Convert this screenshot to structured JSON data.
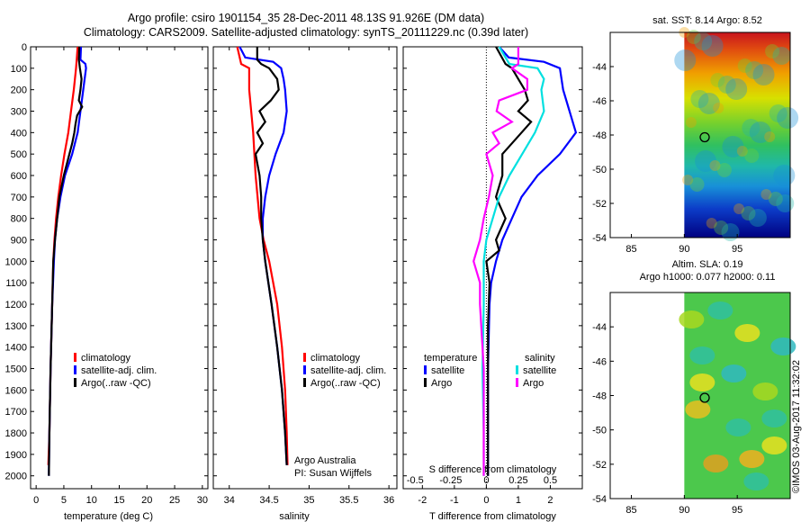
{
  "header": {
    "title_line1": "Argo profile: csiro 1901154_35 28-Dec-2011 48.13S 91.926E (DM data)",
    "title_line2": "Climatology: CARS2009. Satellite-adjusted climatology: synTS_20111229.nc (0.39d later)"
  },
  "colors": {
    "climatology": "#ff0000",
    "satellite": "#0000ff",
    "argo": "#000000",
    "argo_s": "#ff00ff",
    "sat_s": "#00e0e0"
  },
  "depth_ticks": [
    "0",
    "100",
    "200",
    "300",
    "400",
    "500",
    "600",
    "700",
    "800",
    "900",
    "1000",
    "1100",
    "1200",
    "1300",
    "1400",
    "1500",
    "1600",
    "1700",
    "1800",
    "1900",
    "2000"
  ],
  "chart_data": [
    {
      "type": "line",
      "panel": "temperature",
      "xlabel": "temperature (deg C)",
      "ylabel": "depth",
      "xlim": [
        -1,
        31
      ],
      "ylim": [
        0,
        2060
      ],
      "xticks": [
        "0",
        "5",
        "10",
        "15",
        "20",
        "25",
        "30"
      ],
      "xtick_values": [
        0,
        5,
        10,
        15,
        20,
        25,
        30
      ],
      "legend": {
        "climatology": "climatology",
        "satellite": "satellite-adj. clim.",
        "argo": "Argo(..raw -QC)"
      },
      "series": [
        {
          "name": "climatology",
          "depth": [
            0,
            100,
            200,
            300,
            400,
            500,
            600,
            700,
            800,
            900,
            1000,
            1200,
            1500,
            1800,
            1950
          ],
          "values": [
            7.5,
            7.2,
            6.8,
            6.3,
            5.8,
            5.1,
            4.5,
            4.0,
            3.6,
            3.3,
            3.1,
            2.9,
            2.6,
            2.4,
            2.2
          ]
        },
        {
          "name": "satellite-adj. clim.",
          "depth": [
            0,
            60,
            80,
            100,
            200,
            300,
            400,
            500,
            600,
            700,
            800,
            900,
            1000,
            1200,
            1500,
            1800,
            2000
          ],
          "values": [
            8.1,
            8.0,
            8.9,
            9.0,
            8.5,
            8.0,
            7.5,
            6.5,
            5.2,
            4.4,
            3.8,
            3.4,
            3.2,
            2.9,
            2.6,
            2.4,
            2.3
          ]
        },
        {
          "name": "Argo(..raw -QC)",
          "depth": [
            0,
            60,
            100,
            150,
            200,
            250,
            280,
            320,
            360,
            400,
            450,
            500,
            600,
            700,
            800,
            900,
            1000,
            1200,
            1500,
            1800,
            2000
          ],
          "values": [
            7.8,
            7.7,
            7.9,
            8.2,
            8.0,
            7.7,
            8.3,
            7.4,
            7.1,
            6.9,
            6.5,
            6.0,
            5.0,
            4.2,
            3.8,
            3.4,
            3.1,
            2.9,
            2.6,
            2.4,
            2.3
          ]
        }
      ]
    },
    {
      "type": "line",
      "panel": "salinity",
      "xlabel": "salinity",
      "ylabel": "depth",
      "xlim": [
        33.8,
        36.1
      ],
      "ylim": [
        0,
        2060
      ],
      "xticks": [
        "34",
        "34.5",
        "35",
        "35.5",
        "36"
      ],
      "xtick_values": [
        34,
        34.5,
        35,
        35.5,
        36
      ],
      "legend": {
        "climatology": "climatology",
        "satellite": "satellite-adj. clim.",
        "argo": "Argo(..raw -QC)"
      },
      "series": [
        {
          "name": "climatology",
          "depth": [
            0,
            80,
            100,
            200,
            400,
            600,
            800,
            900,
            1000,
            1200,
            1400,
            1600,
            1800,
            1950
          ],
          "values": [
            34.1,
            34.15,
            34.25,
            34.25,
            34.3,
            34.33,
            34.38,
            34.43,
            34.5,
            34.6,
            34.66,
            34.7,
            34.72,
            34.73
          ]
        },
        {
          "name": "satellite-adj. clim.",
          "depth": [
            0,
            50,
            70,
            100,
            150,
            200,
            300,
            400,
            500,
            600,
            700,
            800,
            900,
            1000,
            1200,
            1400,
            1600,
            1800,
            1950
          ],
          "values": [
            34.13,
            34.2,
            34.55,
            34.65,
            34.68,
            34.7,
            34.72,
            34.68,
            34.58,
            34.5,
            34.45,
            34.42,
            34.42,
            34.45,
            34.53,
            34.6,
            34.66,
            34.7,
            34.72
          ]
        },
        {
          "name": "Argo(..raw -QC)",
          "depth": [
            0,
            60,
            80,
            100,
            150,
            200,
            250,
            300,
            350,
            400,
            450,
            500,
            600,
            700,
            800,
            900,
            1000,
            1200,
            1400,
            1600,
            1800,
            1950
          ],
          "values": [
            34.35,
            34.35,
            34.4,
            34.5,
            34.6,
            34.62,
            34.52,
            34.38,
            34.45,
            34.35,
            34.42,
            34.33,
            34.38,
            34.4,
            34.4,
            34.42,
            34.45,
            34.53,
            34.6,
            34.66,
            34.7,
            34.72
          ]
        }
      ]
    },
    {
      "type": "line",
      "panel": "difference",
      "xlabel": "T difference from climatology",
      "xlabel_top": "S difference from climatology",
      "ylabel": "depth",
      "xlim": [
        -2.6,
        3.0
      ],
      "ylim": [
        0,
        2060
      ],
      "xticks": [
        "-2",
        "-1",
        "0",
        "1",
        "2"
      ],
      "xtick_values": [
        -2,
        -1,
        0,
        1,
        2
      ],
      "xticks_s": [
        "-0.5",
        "-0.25",
        "0",
        "0.25",
        "0.5"
      ],
      "xtick_s_values": [
        -0.5,
        -0.25,
        0,
        0.25,
        0.5
      ],
      "legend": {
        "temperature": "temperature",
        "salinity": "salinity",
        "satellite": "satellite",
        "argo": "Argo"
      },
      "series": [
        {
          "name": "satellite (T)",
          "depth": [
            0,
            50,
            70,
            100,
            200,
            300,
            400,
            500,
            600,
            700,
            800,
            900,
            1000,
            1100,
            1200,
            1500,
            1800,
            2000
          ],
          "values": [
            0.4,
            0.7,
            1.8,
            2.3,
            2.4,
            2.6,
            2.8,
            2.3,
            1.6,
            1.1,
            0.8,
            0.5,
            0.3,
            0.15,
            0.1,
            0.05,
            0.05,
            0.05
          ]
        },
        {
          "name": "Argo (T)",
          "depth": [
            0,
            80,
            100,
            150,
            200,
            250,
            300,
            350,
            400,
            450,
            500,
            600,
            700,
            800,
            900,
            950,
            1000,
            1100,
            1300,
            1600,
            2000
          ],
          "values": [
            0.3,
            0.6,
            0.8,
            1.0,
            1.2,
            1.3,
            1.0,
            1.4,
            1.1,
            0.8,
            0.5,
            0.5,
            0.3,
            0.6,
            0.3,
            0.4,
            0.0,
            0.1,
            0.05,
            0.05,
            0.05
          ]
        },
        {
          "name": "satellite (S)",
          "depth": [
            0,
            80,
            100,
            150,
            200,
            300,
            400,
            500,
            600,
            700,
            800,
            900,
            1000,
            1200,
            1500,
            1800,
            2000
          ],
          "values": [
            0.1,
            0.18,
            0.4,
            0.45,
            0.43,
            0.45,
            0.38,
            0.28,
            0.18,
            0.1,
            0.05,
            0.0,
            -0.02,
            -0.02,
            -0.03,
            -0.02,
            -0.02
          ]
        },
        {
          "name": "Argo (S)",
          "depth": [
            0,
            80,
            100,
            150,
            200,
            250,
            300,
            350,
            400,
            450,
            500,
            600,
            700,
            800,
            900,
            1000,
            1100,
            1200,
            1500,
            1800,
            2000
          ],
          "values": [
            0.25,
            0.25,
            0.2,
            0.32,
            0.32,
            0.1,
            0.08,
            0.2,
            0.05,
            0.1,
            0.0,
            0.05,
            0.02,
            -0.02,
            -0.05,
            -0.1,
            -0.05,
            -0.05,
            -0.02,
            -0.02,
            -0.02
          ]
        }
      ]
    },
    {
      "type": "heatmap",
      "panel": "sst-map",
      "title": "sat. SST: 8.14  Argo: 8.52",
      "xlim": [
        83,
        100
      ],
      "ylim": [
        -54,
        -42
      ],
      "xticks": [
        "85",
        "90",
        "95"
      ],
      "xtick_values": [
        85,
        90,
        95
      ],
      "yticks": [
        "-44",
        "-46",
        "-48",
        "-50",
        "-52",
        "-54"
      ],
      "ytick_values": [
        -44,
        -46,
        -48,
        -50,
        -52,
        -54
      ],
      "data_start_lon": 90,
      "float_lon": 91.926,
      "float_lat": -48.13
    },
    {
      "type": "heatmap",
      "panel": "sla-map",
      "title": "Altim. SLA: 0.19",
      "subtitle": "Argo h1000: 0.077 h2000: 0.11",
      "xlim": [
        83,
        100
      ],
      "ylim": [
        -54,
        -42
      ],
      "xticks": [
        "85",
        "90",
        "95"
      ],
      "xtick_values": [
        85,
        90,
        95
      ],
      "yticks": [
        "-44",
        "-46",
        "-48",
        "-50",
        "-52",
        "-54"
      ],
      "ytick_values": [
        -44,
        -46,
        -48,
        -50,
        -52,
        -54
      ],
      "data_start_lon": 90,
      "float_lon": 91.926,
      "float_lat": -48.13
    }
  ],
  "notes": {
    "org": "Argo Australia",
    "pi": "PI: Susan Wijffels",
    "stamp": "©IMOS 03-Aug-2017 11:32:02"
  }
}
